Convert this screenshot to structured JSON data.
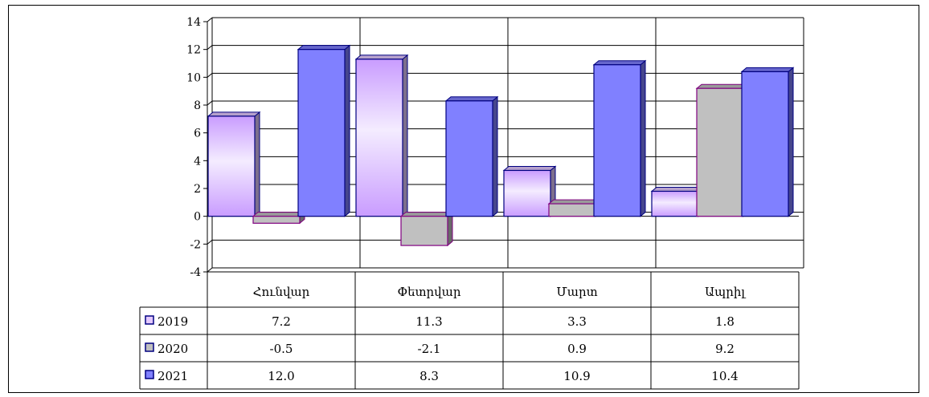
{
  "chart_data": {
    "type": "bar",
    "categories": [
      "Հունվար",
      "Փետրվար",
      "Մարտ",
      "Ապրիլ"
    ],
    "series": [
      {
        "name": "2019",
        "values": [
          7.2,
          11.3,
          3.3,
          1.8
        ],
        "labels": [
          "7.2",
          "11.3",
          "3.3",
          "1.8"
        ],
        "color": "#e4c9ff"
      },
      {
        "name": "2020",
        "values": [
          -0.5,
          -2.1,
          0.9,
          9.2
        ],
        "labels": [
          "-0.5",
          "-2.1",
          "0.9",
          "9.2"
        ],
        "color": "#c0c0c0"
      },
      {
        "name": "2021",
        "values": [
          12.0,
          8.3,
          10.9,
          10.4
        ],
        "labels": [
          "12.0",
          "8.3",
          "10.9",
          "10.4"
        ],
        "color": "#8080ff"
      }
    ],
    "ylim": [
      -4,
      14
    ],
    "yticks": [
      "-4",
      "-2",
      "0",
      "2",
      "4",
      "6",
      "8",
      "10",
      "12",
      "14"
    ],
    "grid": true,
    "legend": "data-table"
  }
}
